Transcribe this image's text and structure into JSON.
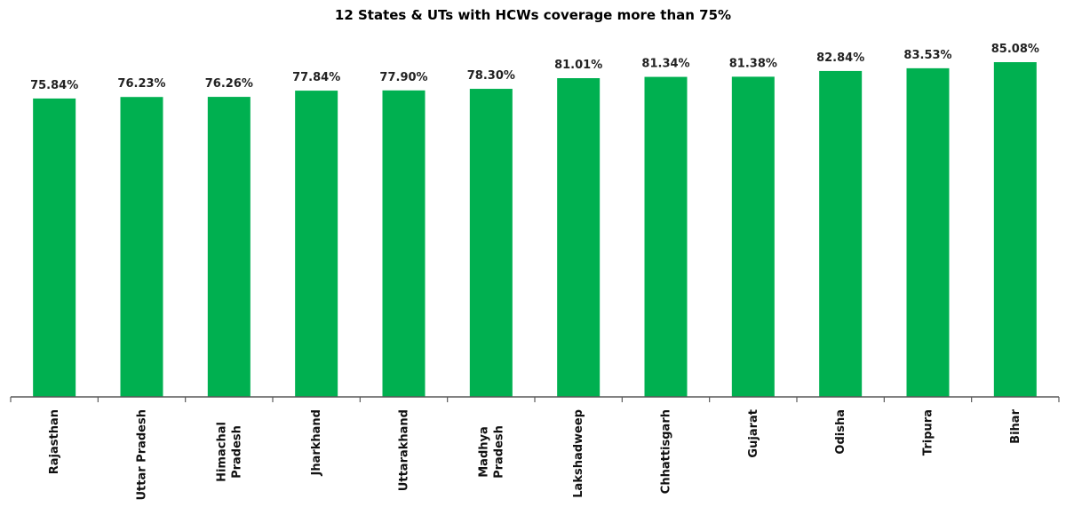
{
  "chart_data": {
    "type": "bar",
    "title": "12 States & UTs with HCWs coverage more than 75%",
    "categories": [
      [
        "Rajasthan"
      ],
      [
        "Uttar Pradesh"
      ],
      [
        "Himachal",
        "Pradesh"
      ],
      [
        "Jharkhand"
      ],
      [
        "Uttarakhand"
      ],
      [
        "Madhya",
        "Pradesh"
      ],
      [
        "Lakshadweep"
      ],
      [
        "Chhattisgarh"
      ],
      [
        "Gujarat"
      ],
      [
        "Odisha"
      ],
      [
        "Tripura"
      ],
      [
        "Bihar"
      ]
    ],
    "values": [
      75.84,
      76.23,
      76.26,
      77.84,
      77.9,
      78.3,
      81.01,
      81.34,
      81.38,
      82.84,
      83.53,
      85.08
    ],
    "data_labels": [
      "75.84%",
      "76.23%",
      "76.26%",
      "77.84%",
      "77.90%",
      "78.30%",
      "81.01%",
      "81.34%",
      "81.38%",
      "82.84%",
      "83.53%",
      "85.08%"
    ],
    "ylim": [
      0,
      85.08
    ],
    "bar_color": "#00b050",
    "axis_color": "#595959",
    "grid": false,
    "legend": "none"
  }
}
